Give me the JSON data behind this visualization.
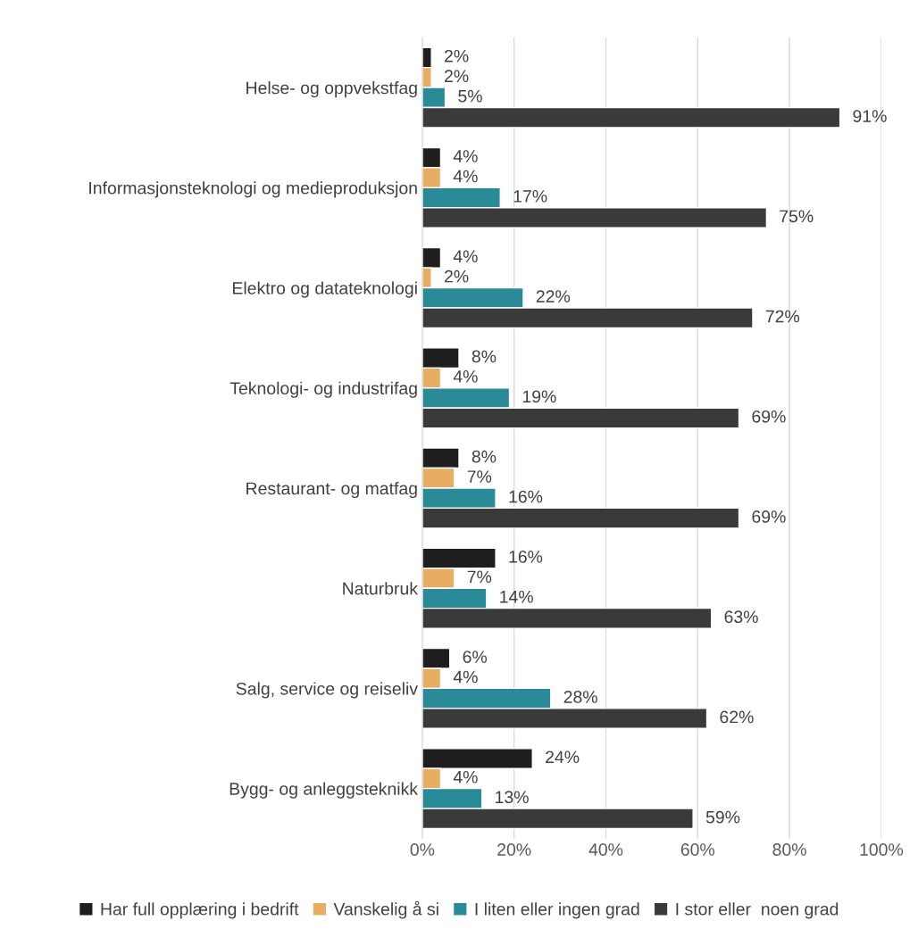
{
  "chart_data": {
    "type": "bar",
    "orientation": "horizontal",
    "categories": [
      "Helse- og oppvekstfag",
      "Informasjonsteknologi og medieproduksjon",
      "Elektro og datateknologi",
      "Teknologi- og industrifag",
      "Restaurant- og matfag",
      "Naturbruk",
      "Salg, service og reiseliv",
      "Bygg- og anleggsteknikk"
    ],
    "series": [
      {
        "name": "Har full opplæring i bedrift",
        "color": "#1e1e1e",
        "values": [
          2,
          4,
          4,
          8,
          8,
          16,
          6,
          24
        ],
        "value_labels": [
          "2%",
          "4%",
          "4%",
          "8%",
          "8%",
          "16%",
          "6%",
          "24%"
        ]
      },
      {
        "name": "Vanskelig å si",
        "color": "#e8ad62",
        "values": [
          2,
          4,
          2,
          4,
          7,
          7,
          4,
          4
        ],
        "value_labels": [
          "2%",
          "4%",
          "2%",
          "4%",
          "7%",
          "7%",
          "4%",
          "4%"
        ]
      },
      {
        "name": "I liten eller ingen grad",
        "color": "#2b8a98",
        "values": [
          5,
          17,
          22,
          19,
          16,
          14,
          28,
          13
        ],
        "value_labels": [
          "5%",
          "17%",
          "22%",
          "19%",
          "16%",
          "14%",
          "28%",
          "13%"
        ]
      },
      {
        "name": "I stor eller  noen grad",
        "color": "#3a3a3a",
        "values": [
          91,
          75,
          72,
          69,
          69,
          63,
          62,
          59
        ],
        "value_labels": [
          "91%",
          "75%",
          "72%",
          "69%",
          "69%",
          "63%",
          "62%",
          "59%"
        ]
      }
    ],
    "xlim": [
      0,
      100
    ],
    "xticks": [
      {
        "value": 0,
        "label": "0%"
      },
      {
        "value": 20,
        "label": "20%"
      },
      {
        "value": 40,
        "label": "40%"
      },
      {
        "value": 60,
        "label": "60%"
      },
      {
        "value": 80,
        "label": "80%"
      },
      {
        "value": 100,
        "label": "100%"
      }
    ],
    "grid": "x",
    "legend": "bottom"
  }
}
